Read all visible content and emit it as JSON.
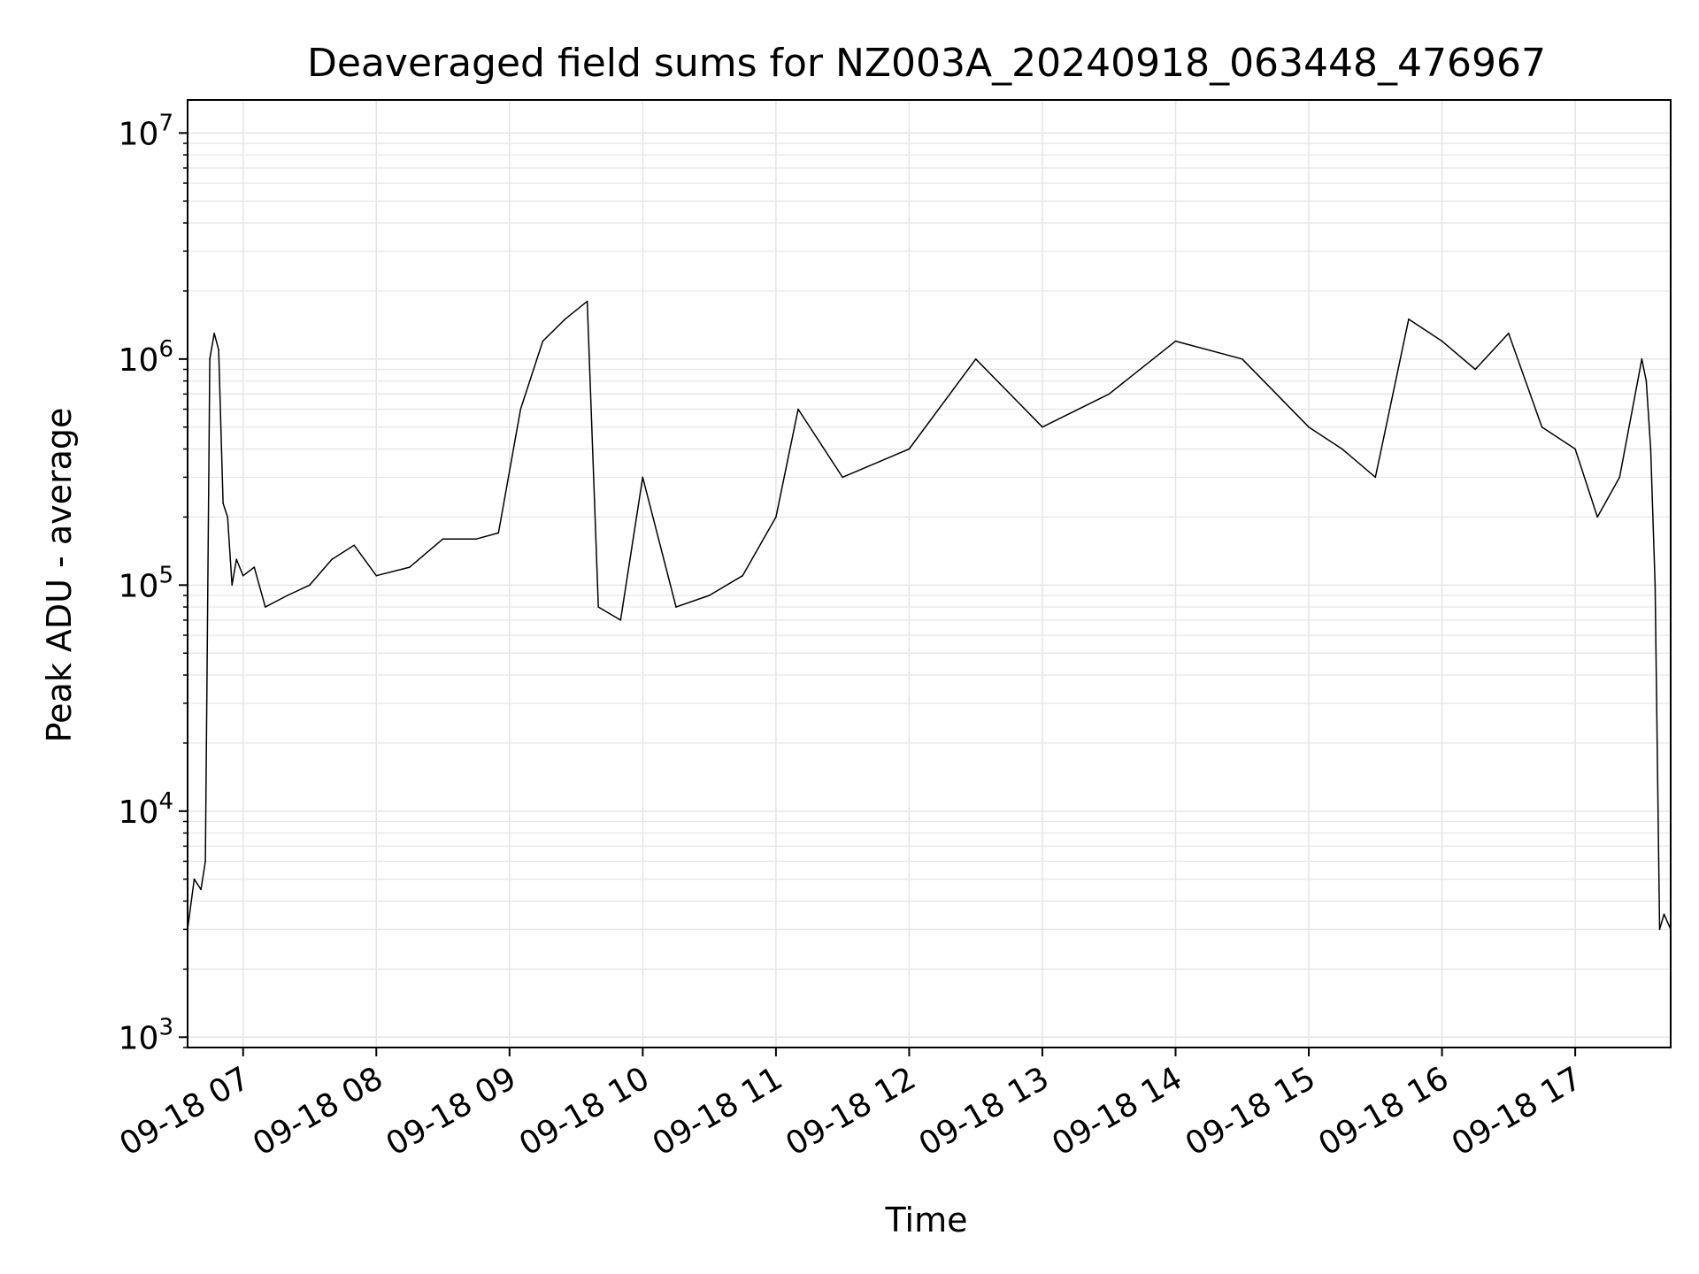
{
  "chart_data": {
    "type": "line",
    "title": "Deaveraged field sums for NZ003A_20240918_063448_476967",
    "xlabel": "Time",
    "ylabel": "Peak ADU - average",
    "yscale": "log",
    "ylim": [
      900,
      14000000
    ],
    "xlim": [
      "2024-09-18 06:35",
      "2024-09-18 17:43"
    ],
    "x_ticks": [
      "09-18 07",
      "09-18 08",
      "09-18 09",
      "09-18 10",
      "09-18 11",
      "09-18 12",
      "09-18 13",
      "09-18 14",
      "09-18 15",
      "09-18 16",
      "09-18 17"
    ],
    "y_ticks": [
      {
        "base": "10",
        "exp": "3"
      },
      {
        "base": "10",
        "exp": "4"
      },
      {
        "base": "10",
        "exp": "5"
      },
      {
        "base": "10",
        "exp": "6"
      },
      {
        "base": "10",
        "exp": "7"
      }
    ],
    "grid": true,
    "line_color": "#000000",
    "grid_color": "#e5e5e5",
    "series": [
      {
        "x": [
          "2024-09-18 06:35",
          "2024-09-18 06:38",
          "2024-09-18 06:41",
          "2024-09-18 06:43",
          "2024-09-18 06:45",
          "2024-09-18 06:47",
          "2024-09-18 06:49",
          "2024-09-18 06:51",
          "2024-09-18 06:53",
          "2024-09-18 06:55",
          "2024-09-18 06:57",
          "2024-09-18 07:00",
          "2024-09-18 07:05",
          "2024-09-18 07:10",
          "2024-09-18 07:20",
          "2024-09-18 07:30",
          "2024-09-18 07:40",
          "2024-09-18 07:50",
          "2024-09-18 08:00",
          "2024-09-18 08:15",
          "2024-09-18 08:30",
          "2024-09-18 08:45",
          "2024-09-18 08:55",
          "2024-09-18 09:05",
          "2024-09-18 09:15",
          "2024-09-18 09:25",
          "2024-09-18 09:35",
          "2024-09-18 09:40",
          "2024-09-18 09:50",
          "2024-09-18 10:00",
          "2024-09-18 10:15",
          "2024-09-18 10:30",
          "2024-09-18 10:45",
          "2024-09-18 11:00",
          "2024-09-18 11:10",
          "2024-09-18 11:30",
          "2024-09-18 12:00",
          "2024-09-18 12:30",
          "2024-09-18 13:00",
          "2024-09-18 13:30",
          "2024-09-18 14:00",
          "2024-09-18 14:30",
          "2024-09-18 15:00",
          "2024-09-18 15:15",
          "2024-09-18 15:30",
          "2024-09-18 15:45",
          "2024-09-18 16:00",
          "2024-09-18 16:15",
          "2024-09-18 16:30",
          "2024-09-18 16:45",
          "2024-09-18 17:00",
          "2024-09-18 17:10",
          "2024-09-18 17:20",
          "2024-09-18 17:30",
          "2024-09-18 17:32",
          "2024-09-18 17:34",
          "2024-09-18 17:36",
          "2024-09-18 17:38",
          "2024-09-18 17:40",
          "2024-09-18 17:43"
        ],
        "values": [
          3000,
          5000,
          4500,
          6000,
          1000000,
          1300000,
          1100000,
          230000,
          200000,
          100000,
          130000,
          110000,
          120000,
          80000,
          90000,
          100000,
          130000,
          150000,
          110000,
          120000,
          160000,
          160000,
          170000,
          600000,
          1200000,
          1500000,
          1800000,
          80000,
          70000,
          300000,
          80000,
          90000,
          110000,
          200000,
          600000,
          300000,
          400000,
          1000000,
          500000,
          700000,
          1200000,
          1000000,
          500000,
          400000,
          300000,
          1500000,
          1200000,
          900000,
          1300000,
          500000,
          400000,
          200000,
          300000,
          1000000,
          800000,
          400000,
          100000,
          3000,
          3500,
          3000
        ]
      }
    ]
  }
}
